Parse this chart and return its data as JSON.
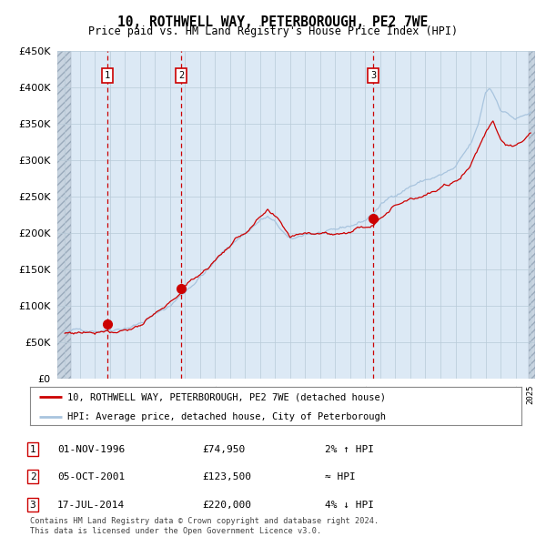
{
  "title": "10, ROTHWELL WAY, PETERBOROUGH, PE2 7WE",
  "subtitle": "Price paid vs. HM Land Registry's House Price Index (HPI)",
  "ylim": [
    0,
    450000
  ],
  "yticks": [
    0,
    50000,
    100000,
    150000,
    200000,
    250000,
    300000,
    350000,
    400000,
    450000
  ],
  "x_start_year": 1994,
  "x_end_year": 2025,
  "hpi_color": "#a8c4de",
  "price_color": "#cc0000",
  "plot_bg": "#dce9f5",
  "vline_color": "#cc0000",
  "sale_dates_float": [
    1996.833,
    2001.75,
    2014.54
  ],
  "sale_prices": [
    74950,
    123500,
    220000
  ],
  "sale_labels": [
    "1",
    "2",
    "3"
  ],
  "legend_entries": [
    "10, ROTHWELL WAY, PETERBOROUGH, PE2 7WE (detached house)",
    "HPI: Average price, detached house, City of Peterborough"
  ],
  "table_rows": [
    [
      "1",
      "01-NOV-1996",
      "£74,950",
      "2% ↑ HPI"
    ],
    [
      "2",
      "05-OCT-2001",
      "£123,500",
      "≈ HPI"
    ],
    [
      "3",
      "17-JUL-2014",
      "£220,000",
      "4% ↓ HPI"
    ]
  ],
  "footer": "Contains HM Land Registry data © Crown copyright and database right 2024.\nThis data is licensed under the Open Government Licence v3.0.",
  "hpi_key_years": [
    1994,
    1995,
    1996,
    1997,
    1998,
    1999,
    2000,
    2001,
    2002,
    2003,
    2004,
    2005,
    2006,
    2007,
    2007.5,
    2008,
    2008.5,
    2009,
    2009.5,
    2010,
    2011,
    2012,
    2013,
    2014,
    2015,
    2016,
    2017,
    2018,
    2019,
    2020,
    2021,
    2021.5,
    2022,
    2022.3,
    2022.7,
    2023,
    2023.5,
    2024,
    2024.5,
    2025
  ],
  "hpi_key_vals": [
    63000,
    65000,
    68000,
    72000,
    78000,
    85000,
    96000,
    108000,
    128000,
    150000,
    170000,
    192000,
    210000,
    228000,
    232000,
    222000,
    210000,
    196000,
    198000,
    204000,
    206000,
    204000,
    210000,
    218000,
    238000,
    254000,
    268000,
    276000,
    282000,
    290000,
    318000,
    342000,
    388000,
    395000,
    380000,
    368000,
    362000,
    355000,
    358000,
    362000
  ],
  "prop_key_years": [
    1994,
    1995,
    1996,
    1996.833,
    1997,
    1998,
    1999,
    2000,
    2001,
    2001.75,
    2002,
    2003,
    2004,
    2005,
    2006,
    2007,
    2007.5,
    2008,
    2009,
    2010,
    2011,
    2012,
    2013,
    2014,
    2014.54,
    2015,
    2016,
    2017,
    2018,
    2019,
    2020,
    2021,
    2022,
    2022.5,
    2023,
    2023.5,
    2024,
    2024.5,
    2025
  ],
  "prop_key_vals": [
    62000,
    64000,
    67000,
    74950,
    71000,
    77000,
    84000,
    95000,
    107000,
    123500,
    130000,
    148000,
    168000,
    190000,
    208000,
    226000,
    232000,
    220000,
    192000,
    200000,
    204000,
    202000,
    208000,
    215000,
    220000,
    235000,
    250000,
    264000,
    272000,
    278000,
    286000,
    312000,
    358000,
    376000,
    352000,
    345000,
    340000,
    348000,
    356000
  ]
}
